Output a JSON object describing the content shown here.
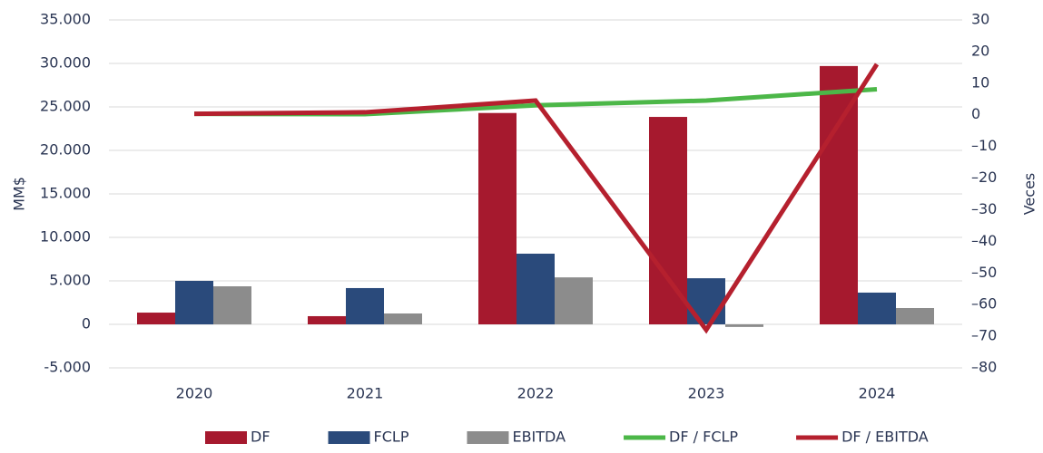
{
  "chart_data": {
    "type": "bar-line",
    "y_label": "MM$",
    "y2_label": "Veces",
    "categories": [
      "2020",
      "2021",
      "2022",
      "2023",
      "2024"
    ],
    "series": [
      {
        "name": "DF",
        "type": "bar",
        "color": "#a6192e",
        "values": [
          1350,
          940,
          24300,
          23850,
          29700
        ]
      },
      {
        "name": "FCLP",
        "type": "bar",
        "color": "#2a4a7b",
        "values": [
          5000,
          4170,
          8125,
          5300,
          3650
        ]
      },
      {
        "name": "EBITDA",
        "type": "bar",
        "color": "#8c8c8c",
        "values": [
          4375,
          1250,
          5400,
          -300,
          1875
        ]
      },
      {
        "name": "DF / FCLP",
        "type": "line",
        "axis": "y2",
        "color": "#4cb748",
        "values": [
          0.3,
          0.2,
          3.0,
          4.5,
          8.1
        ]
      },
      {
        "name": "DF / EBITDA",
        "type": "line",
        "axis": "y2",
        "color": "#b5202e",
        "values": [
          0.3,
          0.8,
          4.5,
          -68,
          16
        ]
      }
    ],
    "ylim": [
      -5000,
      35000
    ],
    "yticks": [
      {
        "value": -5000,
        "label": "-5.000"
      },
      0,
      {
        "value": 5000,
        "label": "5.000"
      },
      {
        "value": 10000,
        "label": "10.000"
      },
      {
        "value": 15000,
        "label": "15.000"
      },
      {
        "value": 20000,
        "label": "20.000"
      },
      {
        "value": 25000,
        "label": "25.000"
      },
      {
        "value": 30000,
        "label": "30.000"
      },
      {
        "value": 35000,
        "label": "35.000"
      }
    ],
    "y2lim": [
      -80,
      30
    ],
    "y2ticks": [
      {
        "value": -80,
        "label": "–80"
      },
      {
        "value": -70,
        "label": "–70"
      },
      {
        "value": -60,
        "label": "–60"
      },
      {
        "value": -50,
        "label": "–50"
      },
      {
        "value": -40,
        "label": "–40"
      },
      {
        "value": -30,
        "label": "–30"
      },
      {
        "value": -20,
        "label": "–20"
      },
      {
        "value": -10,
        "label": "–10"
      },
      0,
      10,
      20,
      30
    ],
    "grid": true,
    "legend": "bottom"
  }
}
